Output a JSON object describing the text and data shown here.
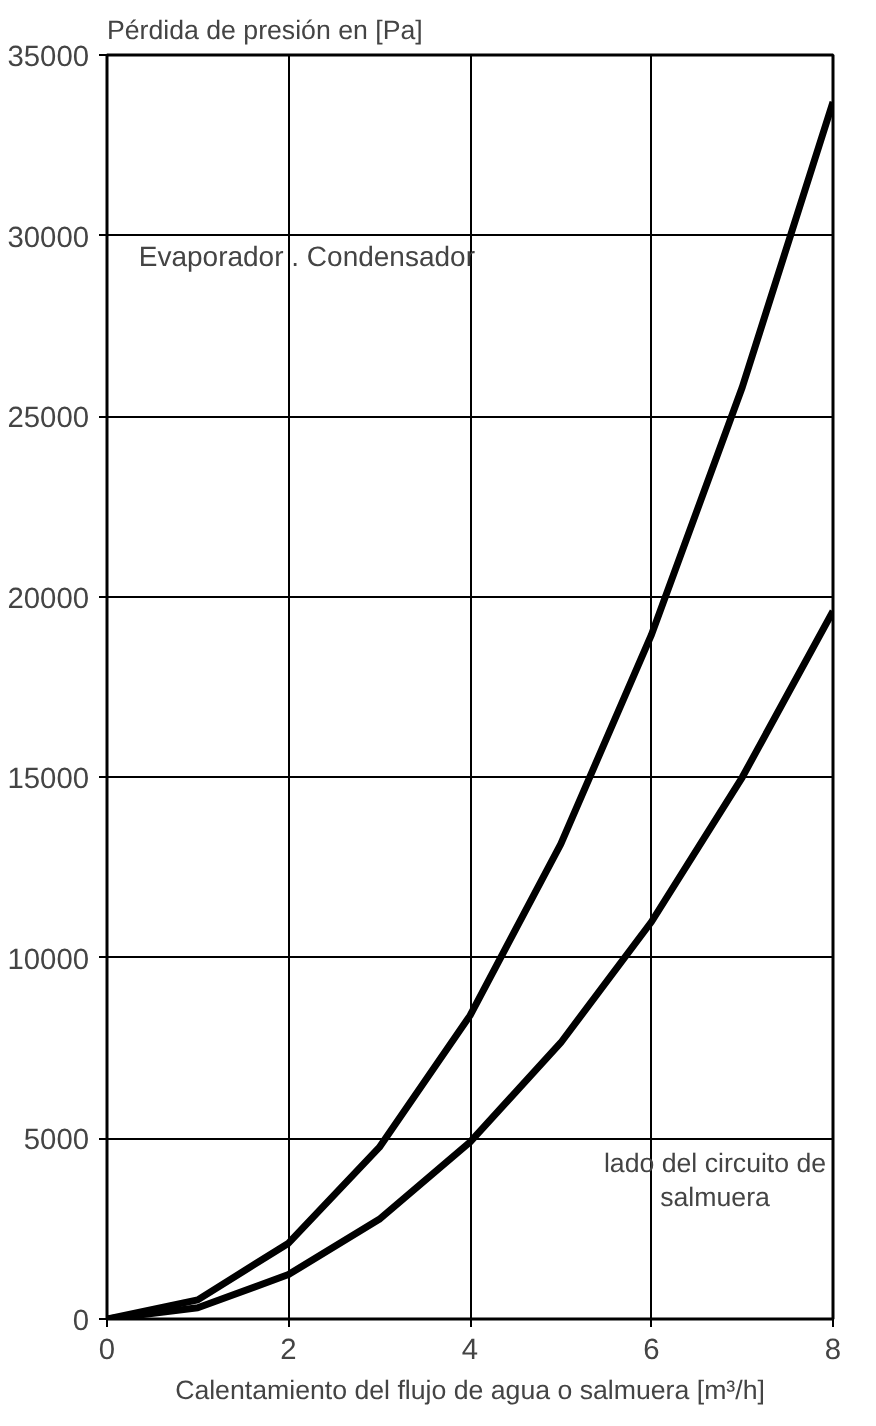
{
  "chart_data": {
    "type": "line",
    "xlabel": "Calentamiento del flujo de agua o salmuera [m³/h]",
    "ylabel": "Pérdida de presión en [Pa]",
    "x": [
      0,
      1,
      2,
      3,
      4,
      5,
      6,
      7,
      8
    ],
    "series": [
      {
        "color": "#000000",
        "values": [
          0,
          530,
          2100,
          4750,
          8400,
          13150,
          18950,
          25800,
          33700
        ]
      },
      {
        "color": "#000000",
        "values": [
          0,
          310,
          1230,
          2760,
          4900,
          7650,
          11000,
          15000,
          19600
        ]
      }
    ],
    "xlim": [
      0,
      8
    ],
    "ylim": [
      0,
      35000
    ],
    "xticks": [
      0,
      2,
      4,
      6,
      8
    ],
    "yticks": [
      0,
      5000,
      10000,
      15000,
      20000,
      25000,
      30000,
      35000
    ],
    "grid": true,
    "line_style": "solid",
    "annotations": [
      "Evaporador . Condensador",
      "lado del circuito de salmuera"
    ]
  }
}
